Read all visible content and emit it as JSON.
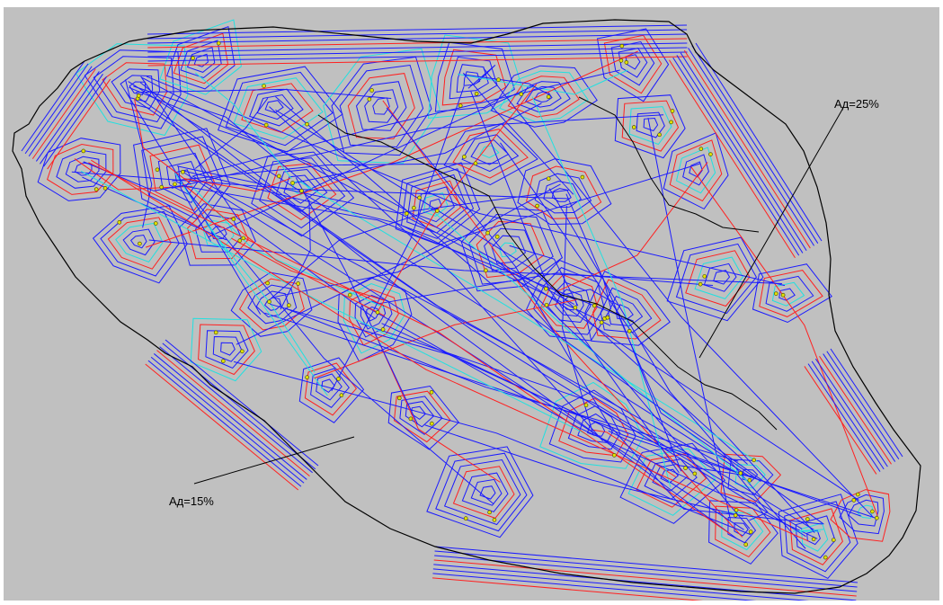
{
  "colors": {
    "background": "#c0c0c0",
    "boundary": "#000000",
    "contour_blue": "#1a1aff",
    "contour_red": "#ff2020",
    "contour_cyan": "#20e0e0",
    "point_fill": "#e0e000",
    "point_stroke": "#404000"
  },
  "annotations": {
    "upper_right": "Ад=25%",
    "lower_left": "Ад=15%"
  }
}
